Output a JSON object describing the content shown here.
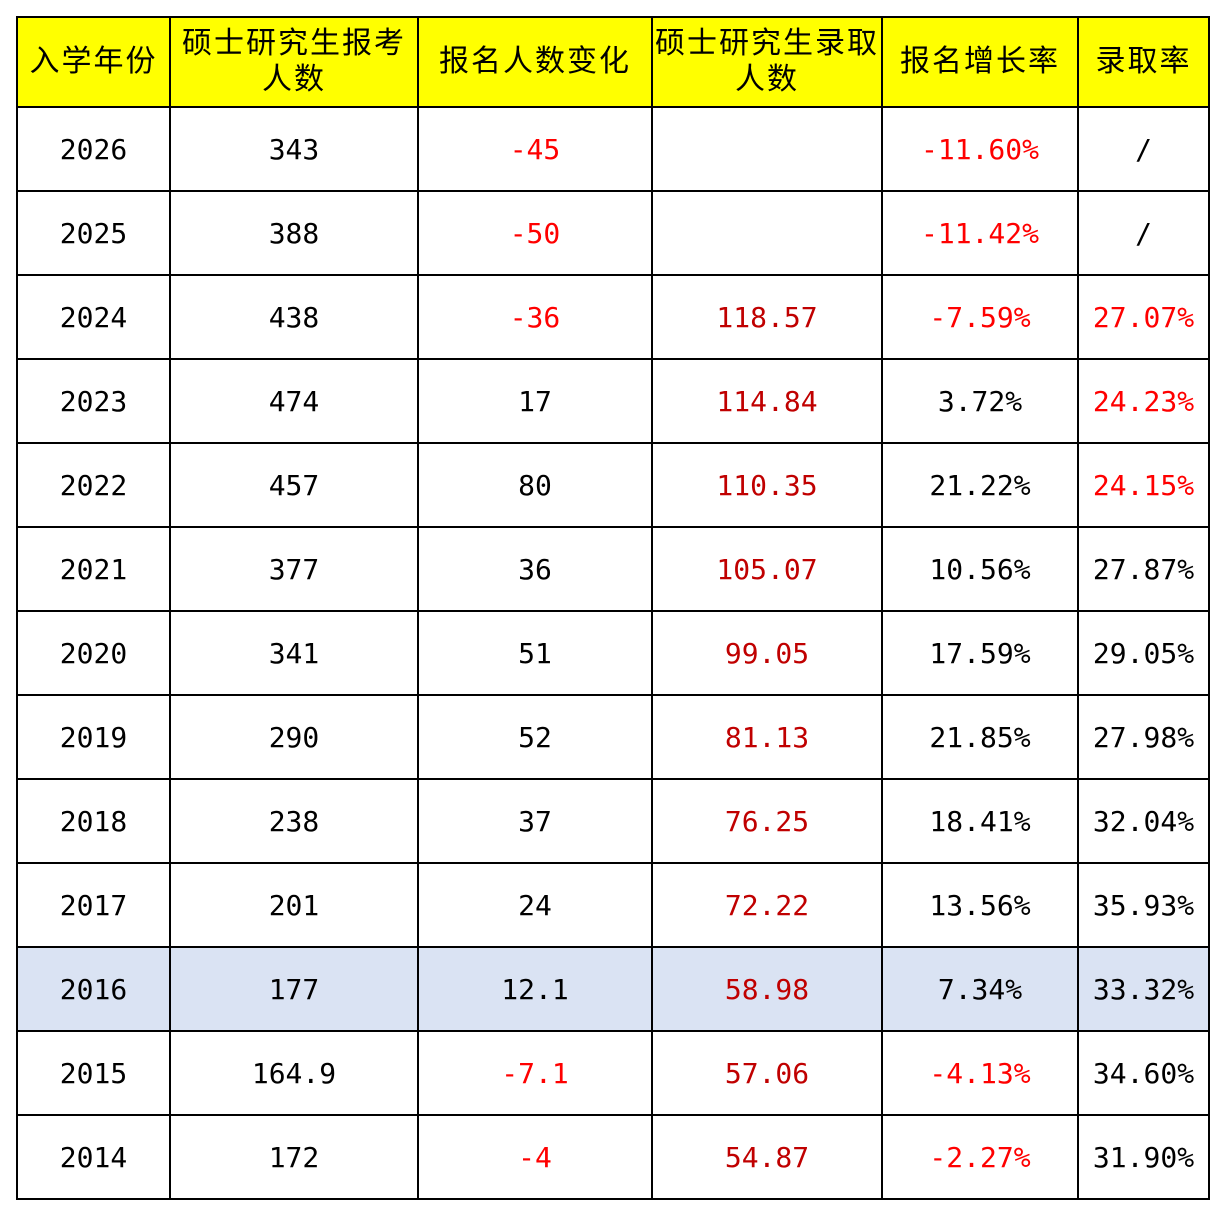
{
  "table": {
    "headers": [
      "入学年份",
      "硕士研究生报考人数",
      "报名人数变化",
      "硕士研究生录取人数",
      "报名增长率",
      "录取率"
    ],
    "rows": [
      {
        "year": "2026",
        "applicants": "343",
        "change": "-45",
        "admitted": "",
        "growth": "-11.60%",
        "rate": "/",
        "change_neg": true,
        "growth_neg": true,
        "rate_red": false,
        "highlight": false
      },
      {
        "year": "2025",
        "applicants": "388",
        "change": "-50",
        "admitted": "",
        "growth": "-11.42%",
        "rate": "/",
        "change_neg": true,
        "growth_neg": true,
        "rate_red": false,
        "highlight": false
      },
      {
        "year": "2024",
        "applicants": "438",
        "change": "-36",
        "admitted": "118.57",
        "growth": "-7.59%",
        "rate": "27.07%",
        "change_neg": true,
        "growth_neg": true,
        "rate_red": true,
        "highlight": false
      },
      {
        "year": "2023",
        "applicants": "474",
        "change": "17",
        "admitted": "114.84",
        "growth": "3.72%",
        "rate": "24.23%",
        "change_neg": false,
        "growth_neg": false,
        "rate_red": true,
        "highlight": false
      },
      {
        "year": "2022",
        "applicants": "457",
        "change": "80",
        "admitted": "110.35",
        "growth": "21.22%",
        "rate": "24.15%",
        "change_neg": false,
        "growth_neg": false,
        "rate_red": true,
        "highlight": false
      },
      {
        "year": "2021",
        "applicants": "377",
        "change": "36",
        "admitted": "105.07",
        "growth": "10.56%",
        "rate": "27.87%",
        "change_neg": false,
        "growth_neg": false,
        "rate_red": false,
        "highlight": false
      },
      {
        "year": "2020",
        "applicants": "341",
        "change": "51",
        "admitted": "99.05",
        "growth": "17.59%",
        "rate": "29.05%",
        "change_neg": false,
        "growth_neg": false,
        "rate_red": false,
        "highlight": false
      },
      {
        "year": "2019",
        "applicants": "290",
        "change": "52",
        "admitted": "81.13",
        "growth": "21.85%",
        "rate": "27.98%",
        "change_neg": false,
        "growth_neg": false,
        "rate_red": false,
        "highlight": false
      },
      {
        "year": "2018",
        "applicants": "238",
        "change": "37",
        "admitted": "76.25",
        "growth": "18.41%",
        "rate": "32.04%",
        "change_neg": false,
        "growth_neg": false,
        "rate_red": false,
        "highlight": false
      },
      {
        "year": "2017",
        "applicants": "201",
        "change": "24",
        "admitted": "72.22",
        "growth": "13.56%",
        "rate": "35.93%",
        "change_neg": false,
        "growth_neg": false,
        "rate_red": false,
        "highlight": false
      },
      {
        "year": "2016",
        "applicants": "177",
        "change": "12.1",
        "admitted": "58.98",
        "growth": "7.34%",
        "rate": "33.32%",
        "change_neg": false,
        "growth_neg": false,
        "rate_red": false,
        "highlight": true
      },
      {
        "year": "2015",
        "applicants": "164.9",
        "change": "-7.1",
        "admitted": "57.06",
        "growth": "-4.13%",
        "rate": "34.60%",
        "change_neg": true,
        "growth_neg": true,
        "rate_red": false,
        "highlight": false
      },
      {
        "year": "2014",
        "applicants": "172",
        "change": "-4",
        "admitted": "54.87",
        "growth": "-2.27%",
        "rate": "31.90%",
        "change_neg": true,
        "growth_neg": true,
        "rate_red": false,
        "highlight": false
      }
    ]
  },
  "colors": {
    "header_bg": "#ffff00",
    "negative_text": "#ff0000",
    "admitted_text": "#c00000",
    "highlight_row_bg": "#dae3f3"
  }
}
